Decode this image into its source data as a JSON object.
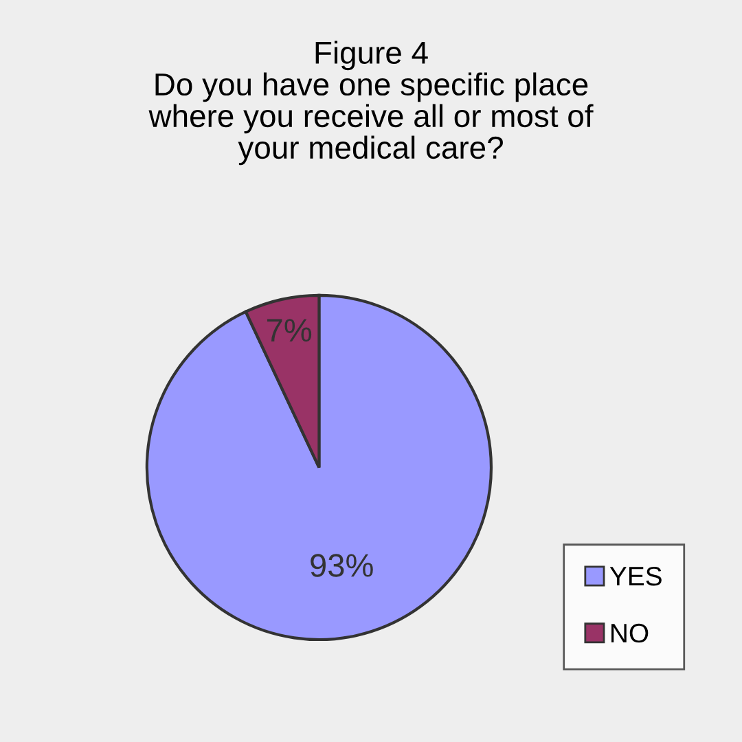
{
  "chart_data": {
    "type": "pie",
    "title": "Figure 4\nDo you have one specific place\nwhere you receive all or most of\nyour medical care?",
    "categories": [
      "YES",
      "NO"
    ],
    "values": [
      93,
      7
    ],
    "colors": [
      "#9999ff",
      "#993366"
    ],
    "value_labels": [
      "93%",
      "7%"
    ],
    "legend": "bottom right"
  }
}
